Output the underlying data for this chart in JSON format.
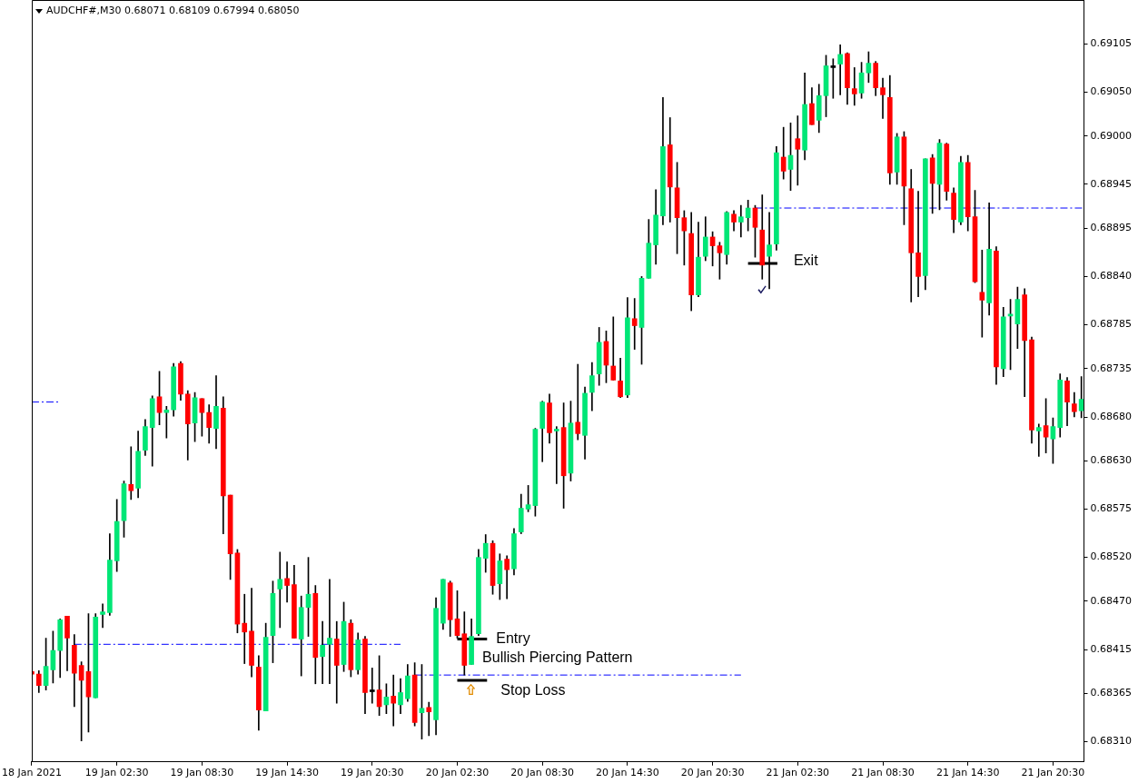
{
  "chart_data": {
    "type": "candlestick",
    "title": "AUDCHF#,M30 0.68071 0.68109 0.67994 0.68050",
    "x": [
      "2021-01-18T20:30",
      "2021-01-18T21:00",
      "2021-01-18T21:30",
      "2021-01-18T22:00",
      "2021-01-18T22:30",
      "2021-01-18T23:00",
      "2021-01-18T23:30",
      "2021-01-19T00:00",
      "2021-01-19T00:30",
      "2021-01-19T01:00",
      "2021-01-19T01:30",
      "2021-01-19T02:00",
      "2021-01-19T02:30",
      "2021-01-19T03:00",
      "2021-01-19T03:30",
      "2021-01-19T04:00",
      "2021-01-19T04:30",
      "2021-01-19T05:00",
      "2021-01-19T05:30",
      "2021-01-19T06:00",
      "2021-01-19T06:30",
      "2021-01-19T07:00",
      "2021-01-19T07:30",
      "2021-01-19T08:00",
      "2021-01-19T08:30",
      "2021-01-19T09:00",
      "2021-01-19T09:30",
      "2021-01-19T10:00",
      "2021-01-19T10:30",
      "2021-01-19T11:00",
      "2021-01-19T11:30",
      "2021-01-19T12:00",
      "2021-01-19T12:30",
      "2021-01-19T13:00",
      "2021-01-19T13:30",
      "2021-01-19T14:00",
      "2021-01-19T14:30",
      "2021-01-19T15:00",
      "2021-01-19T15:30",
      "2021-01-19T16:00",
      "2021-01-19T16:30",
      "2021-01-19T17:00",
      "2021-01-19T17:30",
      "2021-01-19T18:00",
      "2021-01-19T18:30",
      "2021-01-19T19:00",
      "2021-01-19T19:30",
      "2021-01-19T20:00",
      "2021-01-19T20:30",
      "2021-01-19T21:00",
      "2021-01-19T21:30",
      "2021-01-19T22:00",
      "2021-01-19T22:30",
      "2021-01-19T23:00",
      "2021-01-19T23:30",
      "2021-01-20T00:00",
      "2021-01-20T00:30",
      "2021-01-20T01:00",
      "2021-01-20T01:30",
      "2021-01-20T02:00",
      "2021-01-20T02:30",
      "2021-01-20T03:00",
      "2021-01-20T03:30",
      "2021-01-20T04:00",
      "2021-01-20T04:30",
      "2021-01-20T05:00",
      "2021-01-20T05:30",
      "2021-01-20T06:00",
      "2021-01-20T06:30",
      "2021-01-20T07:00",
      "2021-01-20T07:30",
      "2021-01-20T08:00",
      "2021-01-20T08:30",
      "2021-01-20T09:00",
      "2021-01-20T09:30",
      "2021-01-20T10:00",
      "2021-01-20T10:30",
      "2021-01-20T11:00",
      "2021-01-20T11:30",
      "2021-01-20T12:00",
      "2021-01-20T12:30",
      "2021-01-20T13:00",
      "2021-01-20T13:30",
      "2021-01-20T14:00",
      "2021-01-20T14:30",
      "2021-01-20T15:00",
      "2021-01-20T15:30",
      "2021-01-20T16:00",
      "2021-01-20T16:30",
      "2021-01-20T17:00",
      "2021-01-20T17:30",
      "2021-01-20T18:00",
      "2021-01-20T18:30",
      "2021-01-20T19:00",
      "2021-01-20T19:30",
      "2021-01-20T20:00",
      "2021-01-20T20:30",
      "2021-01-20T21:00",
      "2021-01-20T21:30",
      "2021-01-20T22:00",
      "2021-01-20T22:30",
      "2021-01-20T23:00",
      "2021-01-20T23:30",
      "2021-01-21T00:00",
      "2021-01-21T00:30",
      "2021-01-21T01:00",
      "2021-01-21T01:30",
      "2021-01-21T02:00",
      "2021-01-21T02:30",
      "2021-01-21T03:00",
      "2021-01-21T03:30",
      "2021-01-21T04:00",
      "2021-01-21T04:30",
      "2021-01-21T05:00",
      "2021-01-21T05:30",
      "2021-01-21T06:00",
      "2021-01-21T06:30",
      "2021-01-21T07:00",
      "2021-01-21T07:30",
      "2021-01-21T08:00",
      "2021-01-21T08:30",
      "2021-01-21T09:00",
      "2021-01-21T09:30",
      "2021-01-21T10:00",
      "2021-01-21T10:30",
      "2021-01-21T11:00",
      "2021-01-21T11:30",
      "2021-01-21T12:00",
      "2021-01-21T12:30",
      "2021-01-21T13:00",
      "2021-01-21T13:30",
      "2021-01-21T14:00",
      "2021-01-21T14:30",
      "2021-01-21T15:00",
      "2021-01-21T15:30",
      "2021-01-21T16:00",
      "2021-01-21T16:30",
      "2021-01-21T17:00",
      "2021-01-21T17:30",
      "2021-01-21T18:00",
      "2021-01-21T18:30",
      "2021-01-21T19:00",
      "2021-01-21T19:30",
      "2021-01-21T20:00",
      "2021-01-21T20:30",
      "2021-01-21T21:00",
      "2021-01-21T21:30",
      "2021-01-21T22:00",
      "2021-01-21T22:30"
    ],
    "ohlc": [
      [
        0.6839,
        0.68404,
        0.68381,
        0.68387
      ],
      [
        0.68387,
        0.68391,
        0.68366,
        0.68374
      ],
      [
        0.68374,
        0.68428,
        0.68369,
        0.68396
      ],
      [
        0.68392,
        0.68436,
        0.68377,
        0.68414
      ],
      [
        0.68414,
        0.6845,
        0.68383,
        0.68449
      ],
      [
        0.68453,
        0.68453,
        0.68391,
        0.68428
      ],
      [
        0.6842,
        0.68432,
        0.6835,
        0.68388
      ],
      [
        0.68397,
        0.68401,
        0.68311,
        0.6838
      ],
      [
        0.6839,
        0.68456,
        0.68321,
        0.68361
      ],
      [
        0.6836,
        0.68456,
        0.6836,
        0.68452
      ],
      [
        0.68455,
        0.68467,
        0.6844,
        0.68458
      ],
      [
        0.68457,
        0.68547,
        0.68454,
        0.68517
      ],
      [
        0.68516,
        0.68586,
        0.68504,
        0.68561
      ],
      [
        0.68562,
        0.68607,
        0.68543,
        0.68604
      ],
      [
        0.68603,
        0.68646,
        0.68586,
        0.68596
      ],
      [
        0.68599,
        0.68664,
        0.68588,
        0.68641
      ],
      [
        0.68642,
        0.68677,
        0.68636,
        0.68669
      ],
      [
        0.68668,
        0.68704,
        0.68624,
        0.68701
      ],
      [
        0.68703,
        0.68732,
        0.68671,
        0.68685
      ],
      [
        0.68685,
        0.68692,
        0.68656,
        0.68688
      ],
      [
        0.68688,
        0.68741,
        0.68681,
        0.68737
      ],
      [
        0.68741,
        0.68743,
        0.68699,
        0.68706
      ],
      [
        0.68706,
        0.6871,
        0.68631,
        0.68672
      ],
      [
        0.68673,
        0.68708,
        0.68652,
        0.68702
      ],
      [
        0.68701,
        0.68701,
        0.68658,
        0.68685
      ],
      [
        0.68685,
        0.68694,
        0.6865,
        0.68668
      ],
      [
        0.68667,
        0.68727,
        0.68644,
        0.68692
      ],
      [
        0.6869,
        0.68703,
        0.68547,
        0.6859
      ],
      [
        0.68591,
        0.68591,
        0.68495,
        0.68524
      ],
      [
        0.68525,
        0.68529,
        0.68434,
        0.68444
      ],
      [
        0.68445,
        0.68478,
        0.68399,
        0.68435
      ],
      [
        0.68436,
        0.68485,
        0.68384,
        0.68397
      ],
      [
        0.68395,
        0.68408,
        0.68323,
        0.68346
      ],
      [
        0.68345,
        0.68445,
        0.68345,
        0.68429
      ],
      [
        0.68431,
        0.68493,
        0.684,
        0.68479
      ],
      [
        0.68484,
        0.68526,
        0.6844,
        0.68495
      ],
      [
        0.68496,
        0.68515,
        0.68469,
        0.68488
      ],
      [
        0.68489,
        0.68511,
        0.68428,
        0.68428
      ],
      [
        0.68427,
        0.68476,
        0.68385,
        0.68463
      ],
      [
        0.68463,
        0.6852,
        0.6843,
        0.68478
      ],
      [
        0.68479,
        0.68488,
        0.68376,
        0.68406
      ],
      [
        0.68407,
        0.68447,
        0.68376,
        0.6842
      ],
      [
        0.68421,
        0.68495,
        0.68376,
        0.68428
      ],
      [
        0.68427,
        0.68447,
        0.68354,
        0.68397
      ],
      [
        0.68398,
        0.68469,
        0.6839,
        0.68447
      ],
      [
        0.68445,
        0.68449,
        0.68384,
        0.68392
      ],
      [
        0.68392,
        0.68434,
        0.68387,
        0.68426
      ],
      [
        0.68427,
        0.6843,
        0.68342,
        0.68366
      ],
      [
        0.68367,
        0.68394,
        0.68354,
        0.68367
      ],
      [
        0.68369,
        0.68408,
        0.6834,
        0.6835
      ],
      [
        0.68352,
        0.68376,
        0.68342,
        0.68361
      ],
      [
        0.68362,
        0.68386,
        0.68328,
        0.68354
      ],
      [
        0.68352,
        0.68382,
        0.68342,
        0.68366
      ],
      [
        0.68359,
        0.68398,
        0.68356,
        0.68385
      ],
      [
        0.68386,
        0.684,
        0.68328,
        0.68332
      ],
      [
        0.68343,
        0.68398,
        0.68313,
        0.68348
      ],
      [
        0.68349,
        0.68355,
        0.68317,
        0.68344
      ],
      [
        0.68335,
        0.68474,
        0.68318,
        0.68462
      ],
      [
        0.68445,
        0.68495,
        0.68438,
        0.68495
      ],
      [
        0.68491,
        0.68493,
        0.6843,
        0.68449
      ],
      [
        0.6845,
        0.68482,
        0.68428,
        0.68431
      ],
      [
        0.68433,
        0.68458,
        0.68386,
        0.68397
      ],
      [
        0.68398,
        0.6845,
        0.68398,
        0.6843
      ],
      [
        0.68433,
        0.68529,
        0.68431,
        0.6852
      ],
      [
        0.68519,
        0.68546,
        0.68503,
        0.68536
      ],
      [
        0.68536,
        0.68539,
        0.68478,
        0.68488
      ],
      [
        0.6849,
        0.68524,
        0.68472,
        0.68516
      ],
      [
        0.68518,
        0.68522,
        0.68473,
        0.68506
      ],
      [
        0.68507,
        0.68553,
        0.685,
        0.68547
      ],
      [
        0.68549,
        0.68592,
        0.68547,
        0.68576
      ],
      [
        0.68575,
        0.68602,
        0.68572,
        0.6858
      ],
      [
        0.68579,
        0.68667,
        0.68567,
        0.68666
      ],
      [
        0.68667,
        0.68698,
        0.68629,
        0.68697
      ],
      [
        0.68696,
        0.68706,
        0.6865,
        0.68662
      ],
      [
        0.68664,
        0.68669,
        0.68604,
        0.68666
      ],
      [
        0.68668,
        0.68696,
        0.68576,
        0.68613
      ],
      [
        0.68616,
        0.68698,
        0.68607,
        0.68673
      ],
      [
        0.68674,
        0.6874,
        0.68654,
        0.68661
      ],
      [
        0.68659,
        0.68714,
        0.68632,
        0.68707
      ],
      [
        0.68708,
        0.68742,
        0.68687,
        0.68727
      ],
      [
        0.68729,
        0.68782,
        0.68716,
        0.68765
      ],
      [
        0.68766,
        0.68778,
        0.68719,
        0.68739
      ],
      [
        0.68738,
        0.68794,
        0.68722,
        0.68722
      ],
      [
        0.68721,
        0.68747,
        0.68702,
        0.68703
      ],
      [
        0.68705,
        0.68816,
        0.68702,
        0.68793
      ],
      [
        0.68792,
        0.68815,
        0.68757,
        0.68784
      ],
      [
        0.68782,
        0.6884,
        0.6874,
        0.68838
      ],
      [
        0.68838,
        0.68905,
        0.68838,
        0.68878
      ],
      [
        0.68876,
        0.68939,
        0.68854,
        0.6891
      ],
      [
        0.68909,
        0.69044,
        0.68899,
        0.68988
      ],
      [
        0.6899,
        0.69021,
        0.68902,
        0.68942
      ],
      [
        0.68941,
        0.6897,
        0.68866,
        0.68907
      ],
      [
        0.68907,
        0.68915,
        0.68853,
        0.68892
      ],
      [
        0.68889,
        0.68913,
        0.68801,
        0.68819
      ],
      [
        0.68819,
        0.68902,
        0.68817,
        0.68862
      ],
      [
        0.68863,
        0.68908,
        0.68858,
        0.68885
      ],
      [
        0.68885,
        0.68891,
        0.68852,
        0.68875
      ],
      [
        0.68875,
        0.68879,
        0.68837,
        0.68867
      ],
      [
        0.68865,
        0.68914,
        0.68854,
        0.68913
      ],
      [
        0.68911,
        0.68915,
        0.68892,
        0.68902
      ],
      [
        0.68902,
        0.68921,
        0.68885,
        0.68908
      ],
      [
        0.68907,
        0.68927,
        0.68892,
        0.68918
      ],
      [
        0.68918,
        0.68921,
        0.68862,
        0.68896
      ],
      [
        0.68893,
        0.68933,
        0.68837,
        0.68853
      ],
      [
        0.68863,
        0.68913,
        0.68826,
        0.68876
      ],
      [
        0.68877,
        0.68988,
        0.6887,
        0.68981
      ],
      [
        0.68976,
        0.6901,
        0.68951,
        0.6896
      ],
      [
        0.68962,
        0.69015,
        0.68938,
        0.68978
      ],
      [
        0.68997,
        0.69023,
        0.68944,
        0.68985
      ],
      [
        0.68984,
        0.69072,
        0.68973,
        0.69036
      ],
      [
        0.69037,
        0.69055,
        0.69013,
        0.69013
      ],
      [
        0.69018,
        0.69059,
        0.69004,
        0.69046
      ],
      [
        0.69046,
        0.69092,
        0.69022,
        0.6908
      ],
      [
        0.69078,
        0.69088,
        0.69043,
        0.69078
      ],
      [
        0.69082,
        0.69104,
        0.69047,
        0.69093
      ],
      [
        0.69094,
        0.69095,
        0.69036,
        0.69055
      ],
      [
        0.69054,
        0.69078,
        0.69035,
        0.69048
      ],
      [
        0.69049,
        0.69084,
        0.69043,
        0.69072
      ],
      [
        0.69072,
        0.69096,
        0.69061,
        0.69083
      ],
      [
        0.69083,
        0.69085,
        0.69046,
        0.69055
      ],
      [
        0.69055,
        0.69066,
        0.6902,
        0.69047
      ],
      [
        0.69044,
        0.69069,
        0.68945,
        0.68958
      ],
      [
        0.68959,
        0.69003,
        0.68945,
        0.68999
      ],
      [
        0.68999,
        0.69005,
        0.68899,
        0.68943
      ],
      [
        0.6894,
        0.68962,
        0.68811,
        0.68867
      ],
      [
        0.68867,
        0.68937,
        0.68817,
        0.6884
      ],
      [
        0.68841,
        0.68974,
        0.68825,
        0.68974
      ],
      [
        0.68975,
        0.68979,
        0.68912,
        0.68946
      ],
      [
        0.68945,
        0.68996,
        0.68916,
        0.68992
      ],
      [
        0.68991,
        0.68992,
        0.68927,
        0.68937
      ],
      [
        0.68935,
        0.68941,
        0.6889,
        0.68905
      ],
      [
        0.68902,
        0.68977,
        0.68899,
        0.6897
      ],
      [
        0.6897,
        0.68978,
        0.68892,
        0.68908
      ],
      [
        0.68908,
        0.68938,
        0.68833,
        0.68834
      ],
      [
        0.68822,
        0.6887,
        0.68771,
        0.68813
      ],
      [
        0.6881,
        0.68924,
        0.68796,
        0.68871
      ],
      [
        0.68869,
        0.68874,
        0.68717,
        0.68737
      ],
      [
        0.68735,
        0.68805,
        0.68726,
        0.68794
      ],
      [
        0.68795,
        0.68814,
        0.68734,
        0.68797
      ],
      [
        0.68786,
        0.68828,
        0.68758,
        0.68814
      ],
      [
        0.68819,
        0.68826,
        0.68703,
        0.68767
      ],
      [
        0.68768,
        0.68771,
        0.6865,
        0.68665
      ],
      [
        0.68664,
        0.68672,
        0.68635,
        0.68668
      ],
      [
        0.6867,
        0.68701,
        0.68639,
        0.68657
      ],
      [
        0.68655,
        0.68679,
        0.68627,
        0.68669
      ],
      [
        0.68668,
        0.68729,
        0.68657,
        0.68722
      ],
      [
        0.68721,
        0.68725,
        0.6867,
        0.68697
      ],
      [
        0.68695,
        0.68708,
        0.6868,
        0.68686
      ],
      [
        0.68687,
        0.68726,
        0.68679,
        0.687
      ]
    ],
    "colors": [
      "#ff0000",
      "#ff0000",
      "#00e676",
      "#00e676",
      "#00e676",
      "#ff0000",
      "#ff0000",
      "#ff0000",
      "#ff0000",
      "#00e676",
      "#00e676",
      "#00e676",
      "#00e676",
      "#00e676",
      "#ff0000",
      "#00e676",
      "#00e676",
      "#00e676",
      "#ff0000",
      "#00e676",
      "#00e676",
      "#ff0000",
      "#ff0000",
      "#00e676",
      "#ff0000",
      "#ff0000",
      "#00e676",
      "#ff0000",
      "#ff0000",
      "#ff0000",
      "#ff0000",
      "#ff0000",
      "#ff0000",
      "#00e676",
      "#00e676",
      "#00e676",
      "#ff0000",
      "#ff0000",
      "#00e676",
      "#00e676",
      "#ff0000",
      "#00e676",
      "#00e676",
      "#ff0000",
      "#00e676",
      "#ff0000",
      "#00e676",
      "#ff0000",
      "#000000",
      "#ff0000",
      "#00e676",
      "#ff0000",
      "#00e676",
      "#00e676",
      "#ff0000",
      "#00e676",
      "#ff0000",
      "#00e676",
      "#00e676",
      "#ff0000",
      "#ff0000",
      "#ff0000",
      "#00e676",
      "#00e676",
      "#00e676",
      "#ff0000",
      "#00e676",
      "#ff0000",
      "#00e676",
      "#00e676",
      "#00e676",
      "#00e676",
      "#00e676",
      "#ff0000",
      "#00e676",
      "#ff0000",
      "#00e676",
      "#ff0000",
      "#00e676",
      "#00e676",
      "#00e676",
      "#ff0000",
      "#ff0000",
      "#ff0000",
      "#00e676",
      "#ff0000",
      "#00e676",
      "#00e676",
      "#00e676",
      "#00e676",
      "#ff0000",
      "#ff0000",
      "#ff0000",
      "#ff0000",
      "#00e676",
      "#00e676",
      "#ff0000",
      "#ff0000",
      "#00e676",
      "#ff0000",
      "#00e676",
      "#00e676",
      "#ff0000",
      "#ff0000",
      "#00e676",
      "#00e676",
      "#ff0000",
      "#00e676",
      "#ff0000",
      "#00e676",
      "#ff0000",
      "#00e676",
      "#00e676",
      "#000000",
      "#00e676",
      "#ff0000",
      "#ff0000",
      "#00e676",
      "#00e676",
      "#ff0000",
      "#ff0000",
      "#ff0000",
      "#00e676",
      "#ff0000",
      "#ff0000",
      "#ff0000",
      "#00e676",
      "#ff0000",
      "#00e676",
      "#ff0000",
      "#ff0000",
      "#00e676",
      "#ff0000",
      "#ff0000",
      "#ff0000",
      "#00e676",
      "#ff0000",
      "#00e676",
      "#00e676",
      "#00e676",
      "#ff0000",
      "#ff0000",
      "#00e676",
      "#ff0000",
      "#00e676",
      "#00e676",
      "#ff0000",
      "#ff0000",
      "#00e676"
    ],
    "series": [
      {
        "type": "line",
        "x": [
          "2021-01-18T20:30",
          "2021-01-18T22:30"
        ],
        "values": [
          0.68697,
          0.68697
        ],
        "color": "#0000ff",
        "line_style": "dashed"
      },
      {
        "type": "line",
        "x": [
          "2021-01-18T23:30",
          "2021-01-19T22:30"
        ],
        "values": [
          0.68421,
          0.68421
        ],
        "color": "#0000ff",
        "line_style": "dashed"
      },
      {
        "type": "line",
        "x": [
          "2021-01-19T23:30",
          "2021-01-20T22:30"
        ],
        "values": [
          0.68386,
          0.68386
        ],
        "color": "#0000ff",
        "line_style": "dashed"
      },
      {
        "type": "line",
        "x": [
          "2021-01-20T23:30",
          "2021-01-21T22:41"
        ],
        "values": [
          0.68918,
          0.68918
        ],
        "color": "#0000ff",
        "line_style": "dashed"
      },
      {
        "type": "line",
        "x": [
          "2021-01-20T02:30",
          "2021-01-20T04:36"
        ],
        "values": [
          0.68427,
          0.68427
        ],
        "color": "#000000",
        "line_style": "solid"
      },
      {
        "type": "line",
        "x": [
          "2021-01-20T02:30",
          "2021-01-20T04:36"
        ],
        "values": [
          0.6838,
          0.6838
        ],
        "color": "#000000",
        "line_style": "solid"
      },
      {
        "type": "line",
        "x": [
          "2021-01-20T23:00",
          "2021-01-21T01:04"
        ],
        "values": [
          0.68855,
          0.68855
        ],
        "color": "#000000",
        "line_style": "solid"
      }
    ],
    "annotations": [
      {
        "text": "Entry",
        "x": "2021-01-20T04:36",
        "y": 0.68427
      },
      {
        "text": "Bullish Piercing Pattern",
        "x": "2021-01-20T03:30",
        "y": 0.68398
      },
      {
        "text": "Stop Loss",
        "x": "2021-01-20T04:36",
        "y": 0.6838
      },
      {
        "text": "Exit",
        "x": "2021-01-21T01:04",
        "y": 0.68855
      }
    ],
    "xlim": [
      "2021-01-18T20:30",
      "2021-01-21T22:41"
    ],
    "xticks": [
      {
        "value": "2021-01-18T20:30",
        "label": "18 Jan 2021"
      },
      {
        "value": "2021-01-19T02:30",
        "label": "19 Jan 02:30"
      },
      {
        "value": "2021-01-19T08:30",
        "label": "19 Jan 08:30"
      },
      {
        "value": "2021-01-19T14:30",
        "label": "19 Jan 14:30"
      },
      {
        "value": "2021-01-19T20:30",
        "label": "19 Jan 20:30"
      },
      {
        "value": "2021-01-20T02:30",
        "label": "20 Jan 02:30"
      },
      {
        "value": "2021-01-20T08:30",
        "label": "20 Jan 08:30"
      },
      {
        "value": "2021-01-20T14:30",
        "label": "20 Jan 14:30"
      },
      {
        "value": "2021-01-20T20:30",
        "label": "20 Jan 20:30"
      },
      {
        "value": "2021-01-21T02:30",
        "label": "21 Jan 02:30"
      },
      {
        "value": "2021-01-21T08:30",
        "label": "21 Jan 08:30"
      },
      {
        "value": "2021-01-21T14:30",
        "label": "21 Jan 14:30"
      },
      {
        "value": "2021-01-21T20:30",
        "label": "21 Jan 20:30"
      }
    ],
    "ylim": [
      0.68287,
      0.69155
    ],
    "yticks": [
      0.69105,
      {
        "value": 0.6905,
        "label": "0.69050"
      },
      {
        "value": 0.69,
        "label": "0.69000"
      },
      0.68945,
      0.68895,
      {
        "value": 0.6884,
        "label": "0.68840"
      },
      0.68785,
      0.68735,
      {
        "value": 0.6868,
        "label": "0.68680"
      },
      {
        "value": 0.6863,
        "label": "0.68630"
      },
      0.68575,
      {
        "value": 0.6852,
        "label": "0.68520"
      },
      {
        "value": 0.6847,
        "label": "0.68470"
      },
      0.68415,
      0.68365,
      {
        "value": 0.6831,
        "label": "0.68310"
      }
    ]
  }
}
